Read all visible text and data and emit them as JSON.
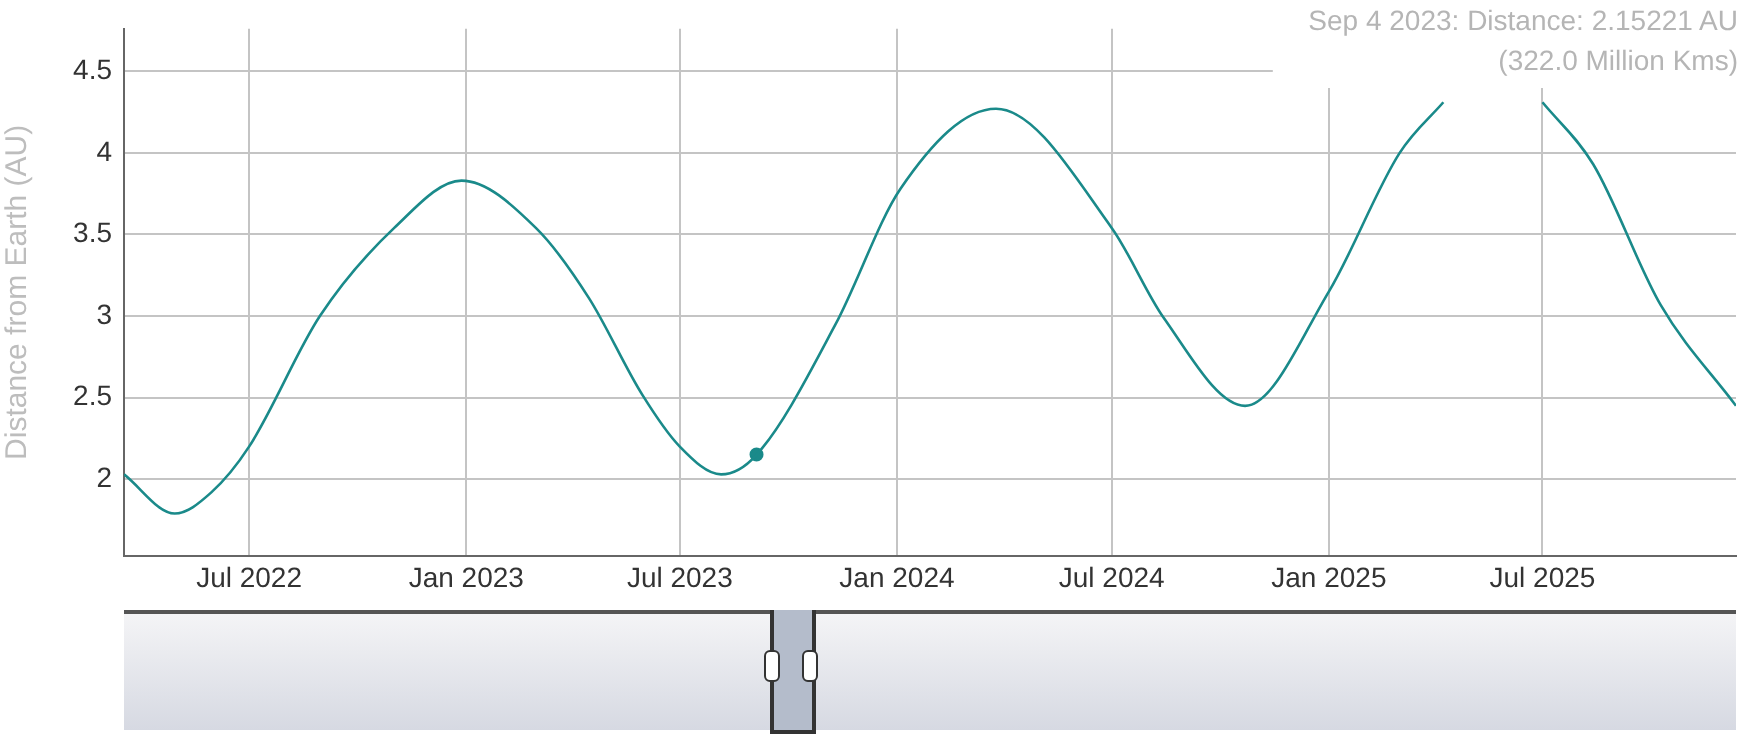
{
  "chart_data": {
    "type": "line",
    "ylabel": "Distance from Earth (AU)",
    "x": [
      "2022-03-17",
      "2022-04-29",
      "2022-05-30",
      "2022-07-01",
      "2022-08-30",
      "2022-11-01",
      "2022-12-28",
      "2023-03-01",
      "2023-04-15",
      "2023-05-30",
      "2023-07-01",
      "2023-08-05",
      "2023-09-04",
      "2023-11-10",
      "2024-01-04",
      "2024-03-25",
      "2024-07-01",
      "2024-08-14",
      "2024-10-22",
      "2025-01-01",
      "2025-03-02",
      "2025-04-08",
      "2025-05-20",
      "2025-07-01",
      "2025-08-13",
      "2025-10-09",
      "2025-12-12"
    ],
    "series": [
      {
        "color": "#1a8a8a",
        "values": [
          2.03,
          1.79,
          1.92,
          2.2,
          3.0,
          3.54,
          3.83,
          3.54,
          3.11,
          2.52,
          2.2,
          2.03,
          2.15,
          2.95,
          3.78,
          4.27,
          3.54,
          2.99,
          2.45,
          3.15,
          4.0,
          4.31,
          null,
          4.31,
          3.93,
          3.07,
          2.45
        ]
      },
      {
        "type": "scatter",
        "color": "#1a8a8a",
        "marker": "circle",
        "x": [
          "2023-09-04"
        ],
        "values": [
          2.15221
        ]
      }
    ],
    "xlim": [
      "2022-03-17",
      "2025-12-12"
    ],
    "xticks": [
      {
        "value": "2022-07",
        "label": "Jul 2022"
      },
      {
        "value": "2023-01",
        "label": "Jan 2023"
      },
      {
        "value": "2023-07",
        "label": "Jul 2023"
      },
      {
        "value": "2024-01",
        "label": "Jan 2024"
      },
      {
        "value": "2024-07",
        "label": "Jul 2024"
      },
      {
        "value": "2025-01",
        "label": "Jan 2025"
      },
      {
        "value": "2025-07",
        "label": "Jul 2025"
      }
    ],
    "ylim": [
      1.53,
      4.76
    ],
    "yticks": [
      2,
      2.5,
      3,
      3.5,
      4,
      4.5
    ],
    "grid": true,
    "legend": false,
    "marker": "none",
    "line_style": "solid",
    "annotations": [
      "Sep 4 2023: Distance: 2.15221 AU",
      "(322.0 Million Kms)"
    ]
  }
}
